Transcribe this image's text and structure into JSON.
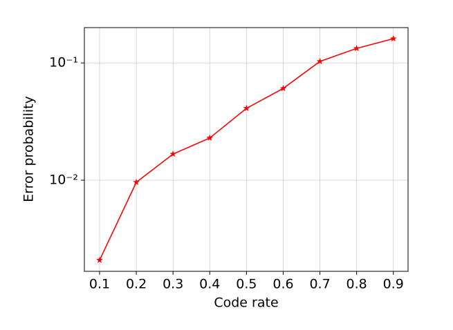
{
  "chart_data": {
    "type": "line",
    "xlabel": "Code rate",
    "ylabel": "Error probability",
    "x": [
      0.1,
      0.2,
      0.3,
      0.4,
      0.5,
      0.6,
      0.7,
      0.8,
      0.9
    ],
    "series": [
      {
        "color": "#ff0000",
        "marker": "star",
        "values": [
          0.00208,
          0.0096,
          0.0167,
          0.0229,
          0.041,
          0.0606,
          0.103,
          0.133,
          0.161
        ]
      }
    ],
    "xlim": [
      0.0586,
      0.94
    ],
    "ylim": [
      0.00167,
      0.2
    ],
    "xticks": [
      0.1,
      0.2,
      0.3,
      0.4,
      0.5,
      0.6,
      0.7,
      0.8,
      0.9
    ],
    "yticks": [
      {
        "value": 0.01,
        "label": "10⁻²"
      },
      {
        "value": 0.1,
        "label": "10⁻¹"
      }
    ],
    "yscale": "log",
    "grid": true
  }
}
